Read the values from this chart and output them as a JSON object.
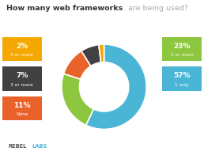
{
  "title_bold": "How many web frameworks",
  "title_rest": " are being used?",
  "slices": [
    57,
    23,
    11,
    7,
    2
  ],
  "labels": [
    "1 only",
    "2 or more",
    "None",
    "3 or more",
    "4 or more"
  ],
  "percentages": [
    "57%",
    "23%",
    "11%",
    "7%",
    "2%"
  ],
  "colors": [
    "#4ab5d4",
    "#8dc63f",
    "#e8622a",
    "#414042",
    "#f5a800"
  ],
  "legend_left": [
    {
      "pct": "2%",
      "label": "4 or more",
      "color": "#f5a800"
    },
    {
      "pct": "7%",
      "label": "3 or more",
      "color": "#414042"
    },
    {
      "pct": "11%",
      "label": "None",
      "color": "#e8622a"
    }
  ],
  "legend_right": [
    {
      "pct": "23%",
      "label": "2 or more",
      "color": "#8dc63f"
    },
    {
      "pct": "57%",
      "label": "1 only",
      "color": "#4ab5d4"
    }
  ],
  "bg_color": "#ffffff",
  "title_color_bold": "#333333",
  "title_color_rest": "#aaaaaa",
  "rebel_color_r": "#555555",
  "rebel_color_labs": "#4ab5d4"
}
